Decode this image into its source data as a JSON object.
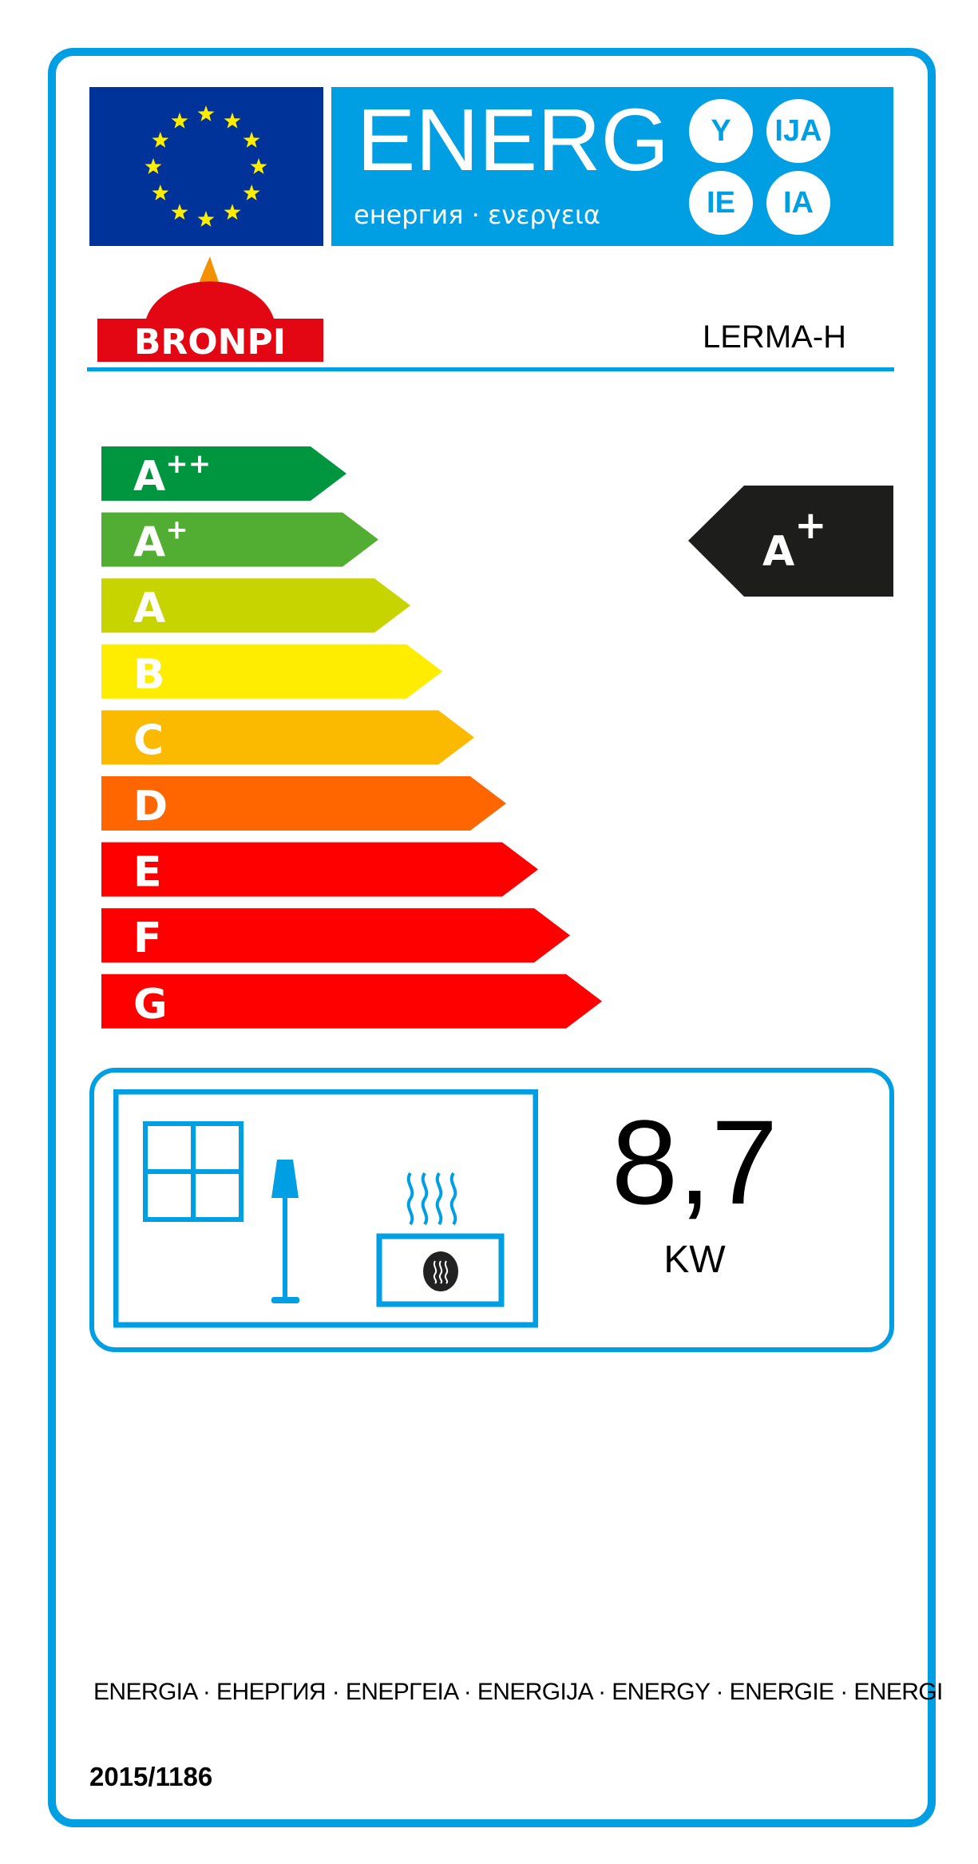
{
  "header": {
    "banner_title": "ENERG",
    "banner_subtitle": "енергия · ενεργεια",
    "language_suffixes": [
      "Y",
      "IJA",
      "IE",
      "IA"
    ],
    "eu_flag_icon": "eu-flag-icon"
  },
  "supplier": {
    "brand": "BRONPI",
    "model": "LERMA-H"
  },
  "scale": {
    "classes": [
      {
        "label": "A",
        "sup": "++",
        "color": "#009640"
      },
      {
        "label": "A",
        "sup": "+",
        "color": "#52ae32"
      },
      {
        "label": "A",
        "sup": "",
        "color": "#c8d400"
      },
      {
        "label": "B",
        "sup": "",
        "color": "#ffed00"
      },
      {
        "label": "C",
        "sup": "",
        "color": "#fbba00"
      },
      {
        "label": "D",
        "sup": "",
        "color": "#ff6600"
      },
      {
        "label": "E",
        "sup": "",
        "color": "#ff0000"
      },
      {
        "label": "F",
        "sup": "",
        "color": "#ff0000"
      },
      {
        "label": "G",
        "sup": "",
        "color": "#ff0000"
      }
    ],
    "rating": {
      "label": "A",
      "sup": "+"
    }
  },
  "output": {
    "value": "8,7",
    "unit": "KW",
    "icons": [
      "window-icon",
      "lamp-icon",
      "heater-icon"
    ]
  },
  "footer": {
    "languages": "ENERGIA · ЕНЕРГИЯ · ΕΝΕΡΓΕΙΑ · ENERGIJA · ENERGY · ENERGIE · ENERGI",
    "regulation": "2015/1186"
  },
  "colors": {
    "accent": "#009fe3",
    "eu_blue": "#003399",
    "star": "#ffed00"
  }
}
